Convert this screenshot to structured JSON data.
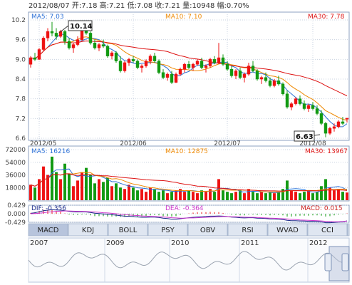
{
  "header": {
    "date": "2012/08/07",
    "open_label": "开:",
    "open": "7.18",
    "high_label": "高:",
    "high": "7.21",
    "low_label": "低:",
    "low": "7.08",
    "close_label": "收:",
    "close": "7.21",
    "volume_label": "量:",
    "volume": "10948",
    "change_label": "幅:",
    "change": "0.70%"
  },
  "price_panel": {
    "ma5_label": "MA5: 7.03",
    "ma10_label": "MA10: 7.10",
    "ma30_label": "MA30: 7.78",
    "max_callout": "10.14",
    "min_callout": "6.63",
    "y_ticks": [
      "10.2",
      "9.6",
      "9.0",
      "8.4",
      "7.8",
      "7.2",
      "6.6"
    ],
    "x_ticks": [
      "2012/05",
      "2012/06",
      "2012/07",
      "2012/08"
    ]
  },
  "volume_panel": {
    "ma5_label": "MA5: 16216",
    "ma10_label": "MA10: 12875",
    "ma30_label": "MA30: 13967",
    "y_ticks": [
      "72000",
      "54000",
      "36000",
      "18000"
    ]
  },
  "macd_panel": {
    "dif_label": "DIF: -0.356",
    "dea_label": "DEA: -0.364",
    "macd_label": "MACD: 0.015",
    "y_ticks": [
      "0.429",
      "0.000",
      "-0.429"
    ]
  },
  "tabs": [
    "MACD",
    "KDJ",
    "BOLL",
    "PSY",
    "OBV",
    "RSI",
    "WVAD",
    "CCI"
  ],
  "active_tab": "MACD",
  "overview": {
    "years": [
      "2007",
      "2009",
      "2010",
      "2011",
      "2012"
    ]
  },
  "colors": {
    "up": "#ee1111",
    "down": "#119911",
    "ma5": "#2a6fd6",
    "ma10": "#ee8800",
    "ma30": "#dd1111",
    "dif": "#1a2a8a",
    "dea": "#cc33cc",
    "grid": "#c9d3e0",
    "tab_bg": "#dfe6f1",
    "tab_active": "#b7c4dc"
  },
  "chart_data": [
    {
      "type": "candlestick",
      "title": "",
      "x_labels": [
        "2012/05",
        "2012/06",
        "2012/07",
        "2012/08"
      ],
      "ylim": [
        6.6,
        10.2
      ],
      "ohlc": [
        [
          8.85,
          9.1,
          8.75,
          9.05
        ],
        [
          9.05,
          9.2,
          8.95,
          9.0
        ],
        [
          9.0,
          9.35,
          8.98,
          9.3
        ],
        [
          9.3,
          9.7,
          9.25,
          9.65
        ],
        [
          9.65,
          9.95,
          9.55,
          9.85
        ],
        [
          9.85,
          10.14,
          9.7,
          9.8
        ],
        [
          9.8,
          9.95,
          9.6,
          9.7
        ],
        [
          9.7,
          9.9,
          9.65,
          9.85
        ],
        [
          9.85,
          9.9,
          9.45,
          9.55
        ],
        [
          9.55,
          9.65,
          9.3,
          9.35
        ],
        [
          9.35,
          9.5,
          9.2,
          9.45
        ],
        [
          9.45,
          9.7,
          9.4,
          9.6
        ],
        [
          9.6,
          9.95,
          9.55,
          9.9
        ],
        [
          9.9,
          10.05,
          9.75,
          9.8
        ],
        [
          9.8,
          9.85,
          9.45,
          9.5
        ],
        [
          9.5,
          9.6,
          9.3,
          9.35
        ],
        [
          9.35,
          9.5,
          9.25,
          9.45
        ],
        [
          9.45,
          9.6,
          9.35,
          9.4
        ],
        [
          9.4,
          9.45,
          9.05,
          9.1
        ],
        [
          9.1,
          9.25,
          9.0,
          9.2
        ],
        [
          9.2,
          9.25,
          8.9,
          8.95
        ],
        [
          8.95,
          9.1,
          8.6,
          8.65
        ],
        [
          8.65,
          8.95,
          8.6,
          8.9
        ],
        [
          8.9,
          9.05,
          8.8,
          9.0
        ],
        [
          9.0,
          9.1,
          8.9,
          8.95
        ],
        [
          8.95,
          9.0,
          8.7,
          8.75
        ],
        [
          8.75,
          8.85,
          8.6,
          8.8
        ],
        [
          8.8,
          9.0,
          8.75,
          8.95
        ],
        [
          8.95,
          9.15,
          8.85,
          9.1
        ],
        [
          9.1,
          9.2,
          8.9,
          8.95
        ],
        [
          8.95,
          9.0,
          8.55,
          8.6
        ],
        [
          8.6,
          8.7,
          8.4,
          8.45
        ],
        [
          8.45,
          8.6,
          8.35,
          8.55
        ],
        [
          8.55,
          8.65,
          8.25,
          8.3
        ],
        [
          8.3,
          8.6,
          8.28,
          8.55
        ],
        [
          8.55,
          8.75,
          8.5,
          8.7
        ],
        [
          8.7,
          8.9,
          8.6,
          8.85
        ],
        [
          8.85,
          8.95,
          8.7,
          8.75
        ],
        [
          8.75,
          8.9,
          8.65,
          8.85
        ],
        [
          8.85,
          9.0,
          8.8,
          8.95
        ],
        [
          8.95,
          9.05,
          8.7,
          8.75
        ],
        [
          8.75,
          8.85,
          8.6,
          8.8
        ],
        [
          8.8,
          9.05,
          8.75,
          9.0
        ],
        [
          9.0,
          9.1,
          8.85,
          8.9
        ],
        [
          8.9,
          9.5,
          8.85,
          9.05
        ],
        [
          9.05,
          9.15,
          8.8,
          8.85
        ],
        [
          8.85,
          8.95,
          8.65,
          8.7
        ],
        [
          8.7,
          8.8,
          8.45,
          8.5
        ],
        [
          8.5,
          8.7,
          8.4,
          8.65
        ],
        [
          8.65,
          8.75,
          8.4,
          8.45
        ],
        [
          8.45,
          8.6,
          8.3,
          8.55
        ],
        [
          8.55,
          8.9,
          8.5,
          8.8
        ],
        [
          8.8,
          8.95,
          8.6,
          8.65
        ],
        [
          8.65,
          8.7,
          8.35,
          8.4
        ],
        [
          8.4,
          8.5,
          8.25,
          8.45
        ],
        [
          8.45,
          8.6,
          8.3,
          8.35
        ],
        [
          8.35,
          8.45,
          8.15,
          8.2
        ],
        [
          8.2,
          8.4,
          8.15,
          8.35
        ],
        [
          8.35,
          8.5,
          8.2,
          8.25
        ],
        [
          8.25,
          8.3,
          7.9,
          7.95
        ],
        [
          7.95,
          8.05,
          7.5,
          7.55
        ],
        [
          7.55,
          7.7,
          7.45,
          7.65
        ],
        [
          7.65,
          7.85,
          7.6,
          7.8
        ],
        [
          7.8,
          7.9,
          7.6,
          7.65
        ],
        [
          7.65,
          7.75,
          7.45,
          7.5
        ],
        [
          7.5,
          7.65,
          7.4,
          7.6
        ],
        [
          7.6,
          7.7,
          7.45,
          7.5
        ],
        [
          7.5,
          7.6,
          7.3,
          7.35
        ],
        [
          7.35,
          7.45,
          7.0,
          7.05
        ],
        [
          7.05,
          7.1,
          6.63,
          6.75
        ],
        [
          6.75,
          6.95,
          6.7,
          6.9
        ],
        [
          6.9,
          7.05,
          6.8,
          6.95
        ],
        [
          6.95,
          7.15,
          6.9,
          7.1
        ],
        [
          7.1,
          7.25,
          7.0,
          7.05
        ],
        [
          7.18,
          7.21,
          7.08,
          7.21
        ]
      ]
    },
    {
      "type": "bar",
      "title": "Volume",
      "ylim": [
        0,
        72000
      ],
      "values": [
        22000,
        18000,
        30000,
        48000,
        36000,
        62000,
        40000,
        30000,
        52000,
        38000,
        20000,
        28000,
        40000,
        46000,
        36000,
        24000,
        30000,
        26000,
        32000,
        20000,
        24000,
        18000,
        16000,
        22000,
        18000,
        14000,
        16000,
        12000,
        18000,
        16000,
        12000,
        14000,
        10000,
        12000,
        14000,
        16000,
        12000,
        14000,
        12000,
        10000,
        14000,
        12000,
        16000,
        12000,
        30000,
        14000,
        12000,
        10000,
        12000,
        14000,
        10000,
        16000,
        12000,
        10000,
        12000,
        10000,
        12000,
        10000,
        12000,
        16000,
        28000,
        14000,
        12000,
        10000,
        12000,
        14000,
        10000,
        12000,
        20000,
        30000,
        18000,
        14000,
        16000,
        12000,
        10948
      ]
    },
    {
      "type": "line",
      "title": "MACD",
      "ylim": [
        -0.429,
        0.429
      ],
      "series": [
        {
          "name": "DIF",
          "values": [
            0.02,
            0.05,
            0.1,
            0.15,
            0.18,
            0.2,
            0.19,
            0.18,
            0.15,
            0.12,
            0.1,
            0.09,
            0.1,
            0.09,
            0.06,
            0.03,
            0.01,
            -0.01,
            -0.03,
            -0.05,
            -0.07,
            -0.1,
            -0.12,
            -0.13,
            -0.14,
            -0.16,
            -0.18,
            -0.18,
            -0.17,
            -0.17,
            -0.19,
            -0.22,
            -0.24,
            -0.27,
            -0.27,
            -0.25,
            -0.22,
            -0.2,
            -0.18,
            -0.16,
            -0.15,
            -0.14,
            -0.12,
            -0.12,
            -0.11,
            -0.12,
            -0.14,
            -0.17,
            -0.18,
            -0.2,
            -0.21,
            -0.2,
            -0.2,
            -0.22,
            -0.23,
            -0.24,
            -0.26,
            -0.26,
            -0.27,
            -0.29,
            -0.33,
            -0.35,
            -0.35,
            -0.36,
            -0.37,
            -0.38,
            -0.38,
            -0.39,
            -0.41,
            -0.45,
            -0.45,
            -0.44,
            -0.42,
            -0.4,
            -0.356
          ]
        },
        {
          "name": "DEA",
          "values": [
            0.0,
            0.01,
            0.03,
            0.05,
            0.08,
            0.1,
            0.12,
            0.13,
            0.14,
            0.14,
            0.13,
            0.12,
            0.12,
            0.11,
            0.1,
            0.09,
            0.07,
            0.05,
            0.04,
            0.02,
            0.0,
            -0.02,
            -0.04,
            -0.06,
            -0.08,
            -0.09,
            -0.11,
            -0.12,
            -0.13,
            -0.14,
            -0.15,
            -0.16,
            -0.18,
            -0.2,
            -0.21,
            -0.22,
            -0.22,
            -0.21,
            -0.21,
            -0.2,
            -0.19,
            -0.18,
            -0.17,
            -0.16,
            -0.15,
            -0.14,
            -0.14,
            -0.15,
            -0.15,
            -0.16,
            -0.17,
            -0.18,
            -0.18,
            -0.19,
            -0.2,
            -0.21,
            -0.22,
            -0.23,
            -0.24,
            -0.25,
            -0.26,
            -0.28,
            -0.29,
            -0.31,
            -0.32,
            -0.33,
            -0.34,
            -0.35,
            -0.36,
            -0.38,
            -0.39,
            -0.4,
            -0.4,
            -0.39,
            -0.364
          ]
        }
      ]
    }
  ]
}
